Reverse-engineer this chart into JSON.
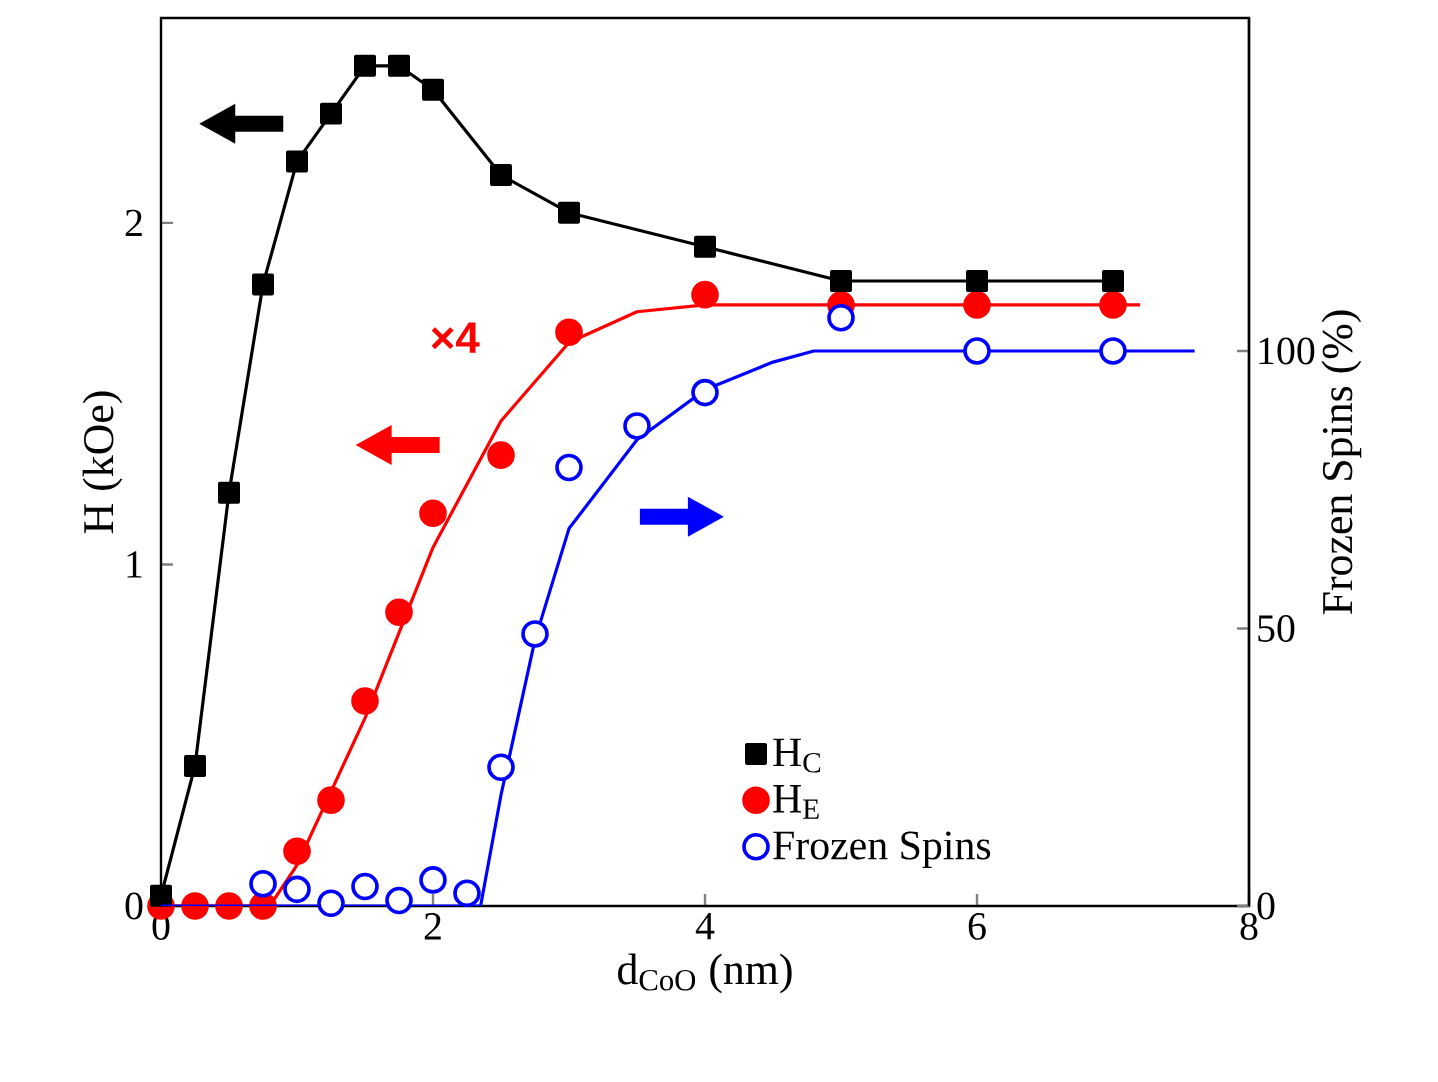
{
  "chart_data": {
    "type": "scatter",
    "xlabel": "d$_{CoO}$ (nm)",
    "ylabel": "H (kOe)",
    "y2label": "Frozen Spins (%)",
    "xlim": [
      0,
      8
    ],
    "xticks": [
      0,
      2,
      4,
      6,
      8
    ],
    "ylim": [
      0,
      2.6
    ],
    "yticks": [
      0,
      1,
      2
    ],
    "y2lim": [
      0,
      160
    ],
    "y2ticks": [
      0,
      50,
      100
    ],
    "grid": false,
    "legend": "bottom right",
    "annotations": [
      "×4"
    ],
    "series": [
      {
        "name": "H$_{C}$",
        "type": "line",
        "marker": "square",
        "color": "#000000",
        "x": [
          0,
          0.25,
          0.5,
          0.75,
          1,
          1.25,
          1.5,
          1.75,
          2,
          2.5,
          3,
          4,
          5,
          6,
          7
        ],
        "values": [
          0.03,
          0.41,
          1.21,
          1.82,
          2.18,
          2.32,
          2.46,
          2.46,
          2.39,
          2.14,
          2.03,
          1.93,
          1.83,
          1.83,
          1.83
        ]
      },
      {
        "name": "H$_{E}$",
        "marker": "circle",
        "color": "#ff0000",
        "x": [
          0,
          0.25,
          0.5,
          0.75,
          1,
          1.25,
          1.5,
          1.75,
          2,
          2.5,
          3,
          4,
          5,
          6,
          7
        ],
        "values": [
          0,
          0,
          0,
          0,
          0.16,
          0.31,
          0.6,
          0.86,
          1.15,
          1.32,
          1.68,
          1.79,
          1.76,
          1.76,
          1.76
        ]
      },
      {
        "name": "Frozen Spins",
        "marker": "circle",
        "axis": "y2",
        "color": "#0000ff",
        "x": [
          0.75,
          1,
          1.25,
          1.5,
          1.75,
          2,
          2.25,
          2.5,
          2.75,
          3,
          3.5,
          4,
          5,
          6,
          7
        ],
        "values": [
          4,
          3,
          0.5,
          3.5,
          1,
          4.7,
          2.3,
          25,
          49,
          79,
          86.5,
          92.5,
          106,
          100,
          100
        ]
      },
      {
        "type": "line",
        "marker": "none",
        "color": "#ff0000",
        "x": [
          0,
          0.8,
          1,
          1.5,
          2,
          2.5,
          3,
          3.5,
          4,
          4.5,
          7.2
        ],
        "values": [
          0,
          0,
          0.12,
          0.55,
          1.05,
          1.42,
          1.65,
          1.74,
          1.76,
          1.76,
          1.76
        ]
      },
      {
        "type": "line",
        "marker": "none",
        "axis": "y2",
        "color": "#0000ff",
        "x": [
          0,
          2.35,
          2.5,
          2.75,
          3,
          3.5,
          4,
          4.5,
          4.8,
          7.6
        ],
        "values": [
          0,
          0,
          20,
          48,
          68,
          84,
          93,
          98,
          100,
          100
        ]
      }
    ]
  }
}
